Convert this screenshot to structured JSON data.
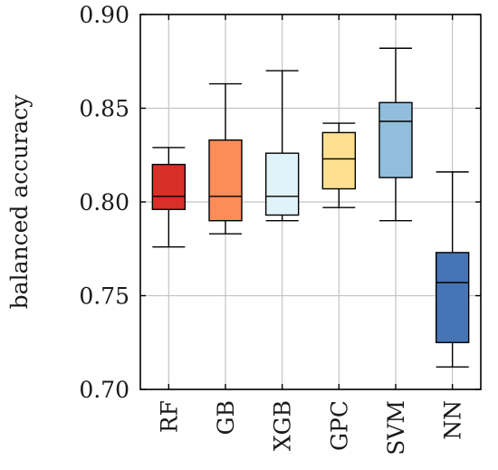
{
  "chart_data": {
    "type": "box",
    "title": "",
    "xlabel": "",
    "ylabel": "balanced accuracy",
    "ylim": [
      0.7,
      0.9
    ],
    "yticks": [
      0.7,
      0.75,
      0.8,
      0.85,
      0.9
    ],
    "ytick_labels": [
      "0.70",
      "0.75",
      "0.80",
      "0.85",
      "0.90"
    ],
    "grid": true,
    "categories": [
      "RF",
      "GB",
      "XGB",
      "GPC",
      "SVM",
      "NN"
    ],
    "boxes": [
      {
        "label": "RF",
        "min": 0.776,
        "q1": 0.796,
        "median": 0.803,
        "q3": 0.82,
        "max": 0.829,
        "color": "#d73027"
      },
      {
        "label": "GB",
        "min": 0.783,
        "q1": 0.79,
        "median": 0.803,
        "q3": 0.833,
        "max": 0.863,
        "color": "#fc8d59"
      },
      {
        "label": "XGB",
        "min": 0.79,
        "q1": 0.793,
        "median": 0.803,
        "q3": 0.826,
        "max": 0.87,
        "color": "#e0f3f8"
      },
      {
        "label": "GPC",
        "min": 0.797,
        "q1": 0.807,
        "median": 0.823,
        "q3": 0.837,
        "max": 0.842,
        "color": "#fee090"
      },
      {
        "label": "SVM",
        "min": 0.79,
        "q1": 0.813,
        "median": 0.843,
        "q3": 0.853,
        "max": 0.882,
        "color": "#91bfdb"
      },
      {
        "label": "NN",
        "min": 0.712,
        "q1": 0.725,
        "median": 0.757,
        "q3": 0.773,
        "max": 0.816,
        "color": "#4575b4"
      }
    ]
  }
}
